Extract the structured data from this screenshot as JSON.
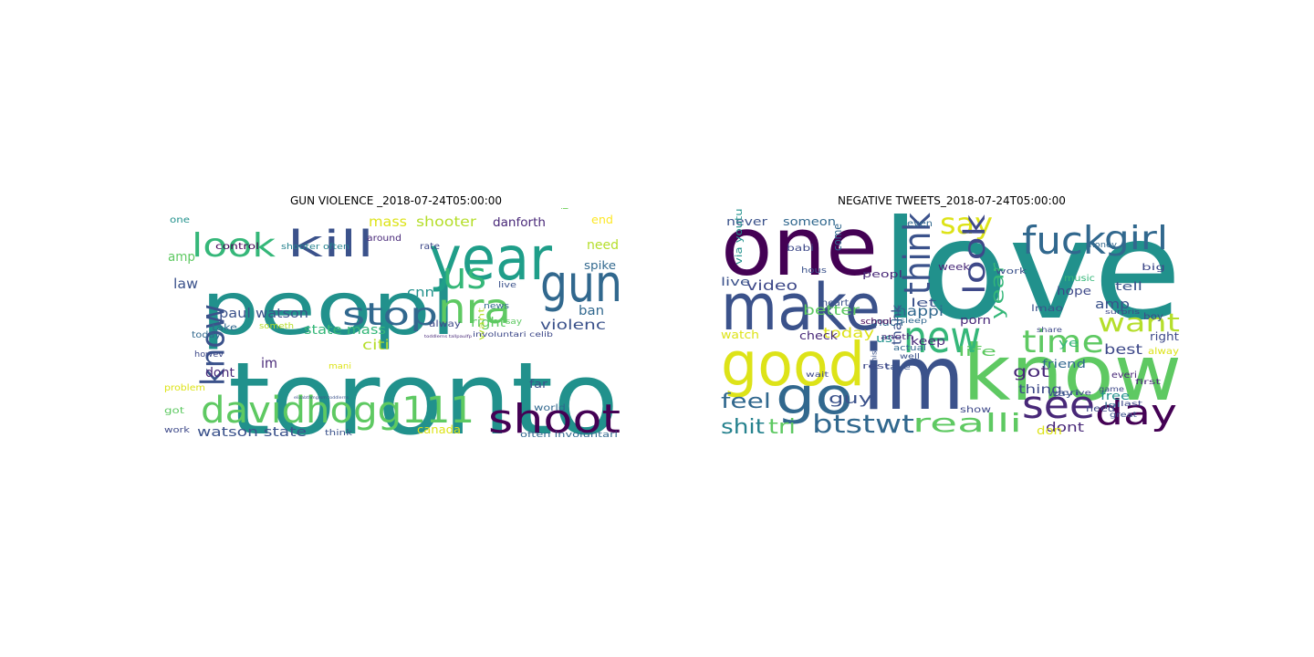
{
  "figure": {
    "left_title": "GUN VIOLENCE _2018-07-24T05:00:00",
    "right_title": "NEGATIVE TWEETS_2018-07-24T05:00:00"
  },
  "left_cloud": {
    "words": [
      {
        "text": "toronto",
        "color": "#21918c"
      },
      {
        "text": "peopl",
        "color": "#21918c"
      },
      {
        "text": "year",
        "color": "#1f9e89"
      },
      {
        "text": "davidhogg111",
        "color": "#5ec962"
      },
      {
        "text": "gun",
        "color": "#31688e"
      },
      {
        "text": "shoot",
        "color": "#440154"
      },
      {
        "text": "kill",
        "color": "#3b528b"
      },
      {
        "text": "look",
        "color": "#35b779"
      },
      {
        "text": "us",
        "color": "#35b779"
      },
      {
        "text": "nra",
        "color": "#5ec962"
      },
      {
        "text": "stop",
        "color": "#31688e"
      },
      {
        "text": "know",
        "color": "#3b528b"
      },
      {
        "text": "paul watson",
        "color": "#3b528b"
      },
      {
        "text": "watson state",
        "color": "#3b528b"
      },
      {
        "text": "state mass",
        "color": "#35b779"
      },
      {
        "text": "violenc",
        "color": "#3b528b"
      },
      {
        "text": "mass",
        "color": "#dde318"
      },
      {
        "text": "shooter",
        "color": "#b5de2b"
      },
      {
        "text": "danforth",
        "color": "#482878"
      },
      {
        "text": "need",
        "color": "#b5de2b"
      },
      {
        "text": "cnn",
        "color": "#21918c"
      },
      {
        "text": "right",
        "color": "#5ec962"
      },
      {
        "text": "ban",
        "color": "#31688e"
      },
      {
        "text": "citi",
        "color": "#b5de2b"
      },
      {
        "text": "dont",
        "color": "#482878"
      },
      {
        "text": "im",
        "color": "#482878"
      },
      {
        "text": "law",
        "color": "#3b528b"
      },
      {
        "text": "amp",
        "color": "#5ec962"
      },
      {
        "text": "spike",
        "color": "#31688e"
      },
      {
        "text": "end",
        "color": "#fde725"
      },
      {
        "text": "one",
        "color": "#21918c"
      },
      {
        "text": "control",
        "color": "#440154"
      },
      {
        "text": "around",
        "color": "#482878"
      },
      {
        "text": "shooter often",
        "color": "#26828e"
      },
      {
        "text": "rate",
        "color": "#3e4989"
      },
      {
        "text": "increas",
        "color": "#6ece58"
      },
      {
        "text": "news",
        "color": "#31688e"
      },
      {
        "text": "live",
        "color": "#3b528b"
      },
      {
        "text": "say",
        "color": "#5ec962"
      },
      {
        "text": "alway",
        "color": "#3e4989"
      },
      {
        "text": "take",
        "color": "#31688e"
      },
      {
        "text": "someth",
        "color": "#b5de2b"
      },
      {
        "text": "today",
        "color": "#31688e"
      },
      {
        "text": "howev",
        "color": "#3e4989"
      },
      {
        "text": "problem",
        "color": "#dde318"
      },
      {
        "text": "got",
        "color": "#5ec962"
      },
      {
        "text": "work",
        "color": "#3e4989"
      },
      {
        "text": "canada",
        "color": "#dde318"
      },
      {
        "text": "think",
        "color": "#3b528b"
      },
      {
        "text": "world",
        "color": "#31688e"
      },
      {
        "text": "often involuntari",
        "color": "#31688e"
      },
      {
        "text": "far",
        "color": "#3b528b"
      },
      {
        "text": "want",
        "color": "#b5de2b"
      },
      {
        "text": "mani",
        "color": "#dde318"
      },
      {
        "text": "involuntari celib",
        "color": "#3e4989"
      },
      {
        "text": "toddlerns tallpaulfp",
        "color": "#482878"
      },
      {
        "text": "elizabthmgrsm toddlerns",
        "color": "#3b528b"
      }
    ]
  },
  "right_cloud": {
    "words": [
      {
        "text": "love",
        "color": "#21918c"
      },
      {
        "text": "im",
        "color": "#3b528b"
      },
      {
        "text": "know",
        "color": "#5ec962"
      },
      {
        "text": "one",
        "color": "#440154"
      },
      {
        "text": "make",
        "color": "#3b528b"
      },
      {
        "text": "good",
        "color": "#dde318"
      },
      {
        "text": "go",
        "color": "#31688e"
      },
      {
        "text": "new",
        "color": "#35b779"
      },
      {
        "text": "fuck",
        "color": "#31688e"
      },
      {
        "text": "girl",
        "color": "#31688e"
      },
      {
        "text": "say",
        "color": "#dde318"
      },
      {
        "text": "think",
        "color": "#3b528b"
      },
      {
        "text": "look",
        "color": "#3e4989"
      },
      {
        "text": "see",
        "color": "#482878"
      },
      {
        "text": "day",
        "color": "#440154"
      },
      {
        "text": "time",
        "color": "#5ec962"
      },
      {
        "text": "want",
        "color": "#b5de2b"
      },
      {
        "text": "btstwt",
        "color": "#31688e"
      },
      {
        "text": "realli",
        "color": "#5ec962"
      },
      {
        "text": "shit",
        "color": "#26828e"
      },
      {
        "text": "tri",
        "color": "#5ec962"
      },
      {
        "text": "feel",
        "color": "#31688e"
      },
      {
        "text": "guy",
        "color": "#3b528b"
      },
      {
        "text": "video",
        "color": "#3e4989"
      },
      {
        "text": "better",
        "color": "#5ec962"
      },
      {
        "text": "today",
        "color": "#dde318"
      },
      {
        "text": "happi",
        "color": "#31688e"
      },
      {
        "text": "year",
        "color": "#35b779"
      },
      {
        "text": "amp",
        "color": "#3b528b"
      },
      {
        "text": "got",
        "color": "#482878"
      },
      {
        "text": "best",
        "color": "#3e4989"
      },
      {
        "text": "life",
        "color": "#5ec962"
      },
      {
        "text": "dont",
        "color": "#482878"
      },
      {
        "text": "don",
        "color": "#dde318"
      },
      {
        "text": "thing",
        "color": "#3e4989"
      },
      {
        "text": "never",
        "color": "#3b528b"
      },
      {
        "text": "someon",
        "color": "#31688e"
      },
      {
        "text": "live",
        "color": "#3b528b"
      },
      {
        "text": "peopl",
        "color": "#482878"
      },
      {
        "text": "come",
        "color": "#31688e"
      },
      {
        "text": "let",
        "color": "#3b528b"
      },
      {
        "text": "keep",
        "color": "#482878"
      },
      {
        "text": "thank",
        "color": "#3b528b"
      },
      {
        "text": "watch",
        "color": "#dde318"
      },
      {
        "text": "check",
        "color": "#482878"
      },
      {
        "text": "much",
        "color": "#31688e"
      },
      {
        "text": "us",
        "color": "#21918c"
      },
      {
        "text": "hope",
        "color": "#3e4989"
      },
      {
        "text": "tell",
        "color": "#3b528b"
      },
      {
        "text": "right",
        "color": "#3e4989"
      },
      {
        "text": "friend",
        "color": "#31688e"
      },
      {
        "text": "porn",
        "color": "#482878"
      },
      {
        "text": "ye",
        "color": "#35b779"
      },
      {
        "text": "free",
        "color": "#21918c"
      },
      {
        "text": "need",
        "color": "#3e4989"
      },
      {
        "text": "week",
        "color": "#482878"
      },
      {
        "text": "even",
        "color": "#31688e"
      },
      {
        "text": "school",
        "color": "#440154"
      },
      {
        "text": "music",
        "color": "#35b779"
      },
      {
        "text": "alway",
        "color": "#dde318"
      },
      {
        "text": "show",
        "color": "#3e4989"
      },
      {
        "text": "way",
        "color": "#3b528b"
      },
      {
        "text": "everi",
        "color": "#482878"
      },
      {
        "text": "boy",
        "color": "#3e4989"
      },
      {
        "text": "big",
        "color": "#3e4989"
      },
      {
        "text": "lmao",
        "color": "#3b528b"
      },
      {
        "text": "babi",
        "color": "#3e4989"
      },
      {
        "text": "via youtub",
        "color": "#21918c"
      },
      {
        "text": "work",
        "color": "#3b528b"
      },
      {
        "text": "money",
        "color": "#31688e"
      },
      {
        "text": "heart",
        "color": "#3b528b"
      },
      {
        "text": "hous",
        "color": "#3b528b"
      },
      {
        "text": "actual",
        "color": "#31688e"
      },
      {
        "text": "take",
        "color": "#3b528b"
      },
      {
        "text": "cri",
        "color": "#3b528b"
      },
      {
        "text": "game",
        "color": "#3e4989"
      },
      {
        "text": "last",
        "color": "#3e4989"
      },
      {
        "text": "great",
        "color": "#3b528b"
      },
      {
        "text": "first",
        "color": "#482878"
      },
      {
        "text": "rest",
        "color": "#3e4989"
      },
      {
        "text": "sleep",
        "color": "#31688e"
      },
      {
        "text": "share",
        "color": "#3e4989"
      },
      {
        "text": "miss",
        "color": "#3b528b"
      },
      {
        "text": "anoth",
        "color": "#482878"
      },
      {
        "text": "ive",
        "color": "#3e4989"
      },
      {
        "text": "well",
        "color": "#3b528b"
      },
      {
        "text": "surpris",
        "color": "#3e4989"
      },
      {
        "text": "lol",
        "color": "#31688e"
      },
      {
        "text": "wait",
        "color": "#3e4989"
      }
    ]
  }
}
